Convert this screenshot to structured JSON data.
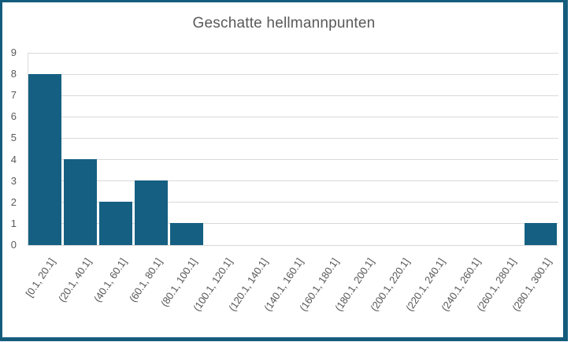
{
  "chart_data": {
    "type": "bar",
    "title": "Geschatte hellmannpunten",
    "categories": [
      "[0.1, 20.1]",
      "(20.1, 40.1]",
      "(40.1, 60.1]",
      "(60.1, 80.1]",
      "(80.1, 100.1]",
      "(100.1, 120.1]",
      "(120.1, 140.1]",
      "(140.1, 160.1]",
      "(160.1, 180.1]",
      "(180.1, 200.1]",
      "(200.1, 220.1]",
      "(220.1, 240.1]",
      "(240.1, 260.1]",
      "(260.1, 280.1]",
      "(280.1, 300.1]"
    ],
    "values": [
      8,
      4,
      2,
      3,
      1,
      0,
      0,
      0,
      0,
      0,
      0,
      0,
      0,
      0,
      1
    ],
    "xlabel": "",
    "ylabel": "",
    "ylim": [
      0,
      9
    ],
    "yticks": [
      0,
      1,
      2,
      3,
      4,
      5,
      6,
      7,
      8,
      9
    ],
    "grid": true,
    "legend": "none",
    "x_tick_rotation_deg": -56,
    "colors": {
      "bar": "#156082",
      "frame_border": "#145C7C",
      "gridline": "#D9D9D9",
      "tick_text": "#595959",
      "title_text": "#595959",
      "background": "#FFFFFF"
    }
  }
}
